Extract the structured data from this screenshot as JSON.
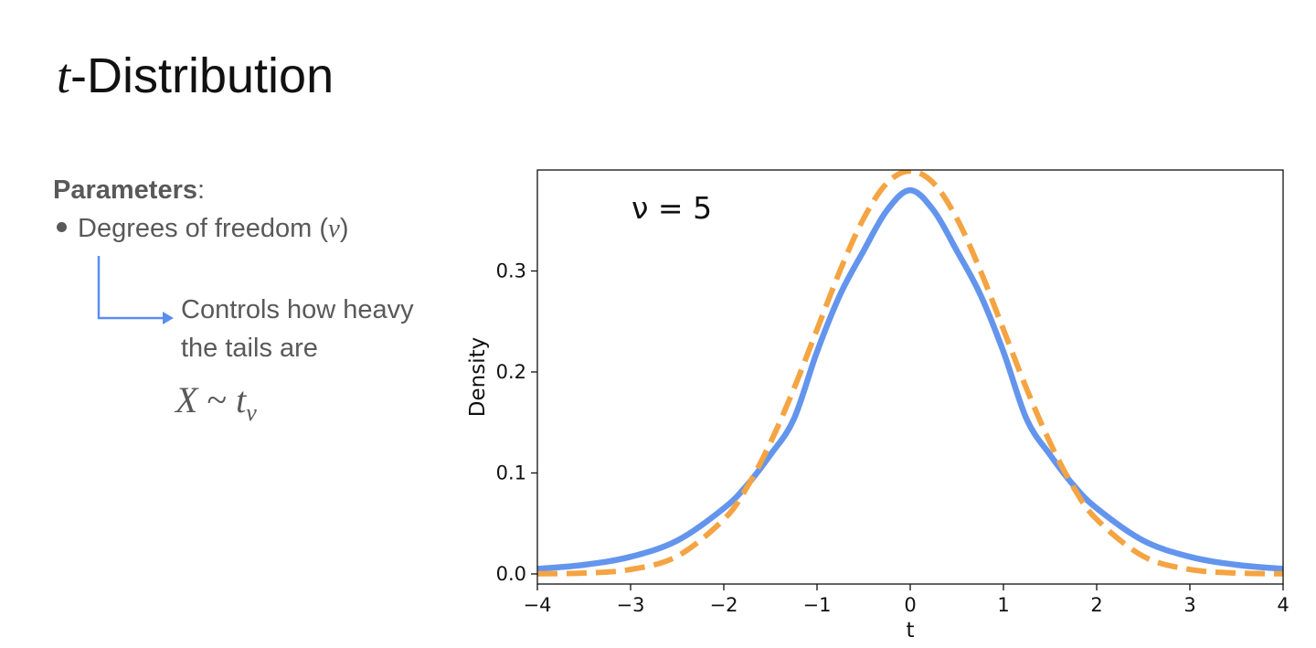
{
  "slide": {
    "title_var": "t",
    "title_rest": "-Distribution",
    "params_heading": "Parameters",
    "params_colon": ":",
    "bullet_text": "Degrees of freedom (",
    "bullet_symbol": "ν",
    "bullet_close": ")",
    "note_line1": "Controls how heavy",
    "note_line2": "the tails are",
    "formula_lhs": "X",
    "formula_op": " ~ ",
    "formula_t": "t",
    "formula_sub": "ν",
    "arrow_color": "#5b8def"
  },
  "chart_data": {
    "type": "line",
    "annotation": "ν = 5",
    "xlabel": "t",
    "ylabel": "Density",
    "xlim": [
      -4,
      4
    ],
    "ylim": [
      -0.01,
      0.4
    ],
    "xticks": [
      -4,
      -3,
      -2,
      -1,
      0,
      1,
      2,
      3,
      4
    ],
    "xtick_labels": [
      "−4",
      "−3",
      "−2",
      "−1",
      "0",
      "1",
      "2",
      "3",
      "4"
    ],
    "yticks": [
      0.0,
      0.1,
      0.2,
      0.3
    ],
    "ytick_labels": [
      "0.0",
      "0.1",
      "0.2",
      "0.3"
    ],
    "grid": false,
    "x": [
      -4,
      -3.5,
      -3,
      -2.5,
      -2,
      -1.75,
      -1.5,
      -1.25,
      -1,
      -0.75,
      -0.5,
      -0.25,
      0,
      0.25,
      0.5,
      0.75,
      1,
      1.25,
      1.5,
      1.75,
      2,
      2.5,
      3,
      3.5,
      4
    ],
    "series": [
      {
        "style": "solid",
        "color": "#6495ed",
        "values": [
          0.005,
          0.009,
          0.017,
          0.033,
          0.065,
          0.088,
          0.118,
          0.153,
          0.22,
          0.277,
          0.32,
          0.36,
          0.38,
          0.36,
          0.32,
          0.277,
          0.22,
          0.153,
          0.118,
          0.088,
          0.065,
          0.033,
          0.017,
          0.009,
          0.005
        ]
      },
      {
        "style": "dashed",
        "color": "#f4a442",
        "values": [
          0.0001,
          0.0009,
          0.0044,
          0.0175,
          0.054,
          0.086,
          0.13,
          0.183,
          0.242,
          0.301,
          0.352,
          0.387,
          0.399,
          0.387,
          0.352,
          0.301,
          0.242,
          0.183,
          0.13,
          0.086,
          0.054,
          0.0175,
          0.0044,
          0.0009,
          0.0001
        ]
      }
    ]
  }
}
